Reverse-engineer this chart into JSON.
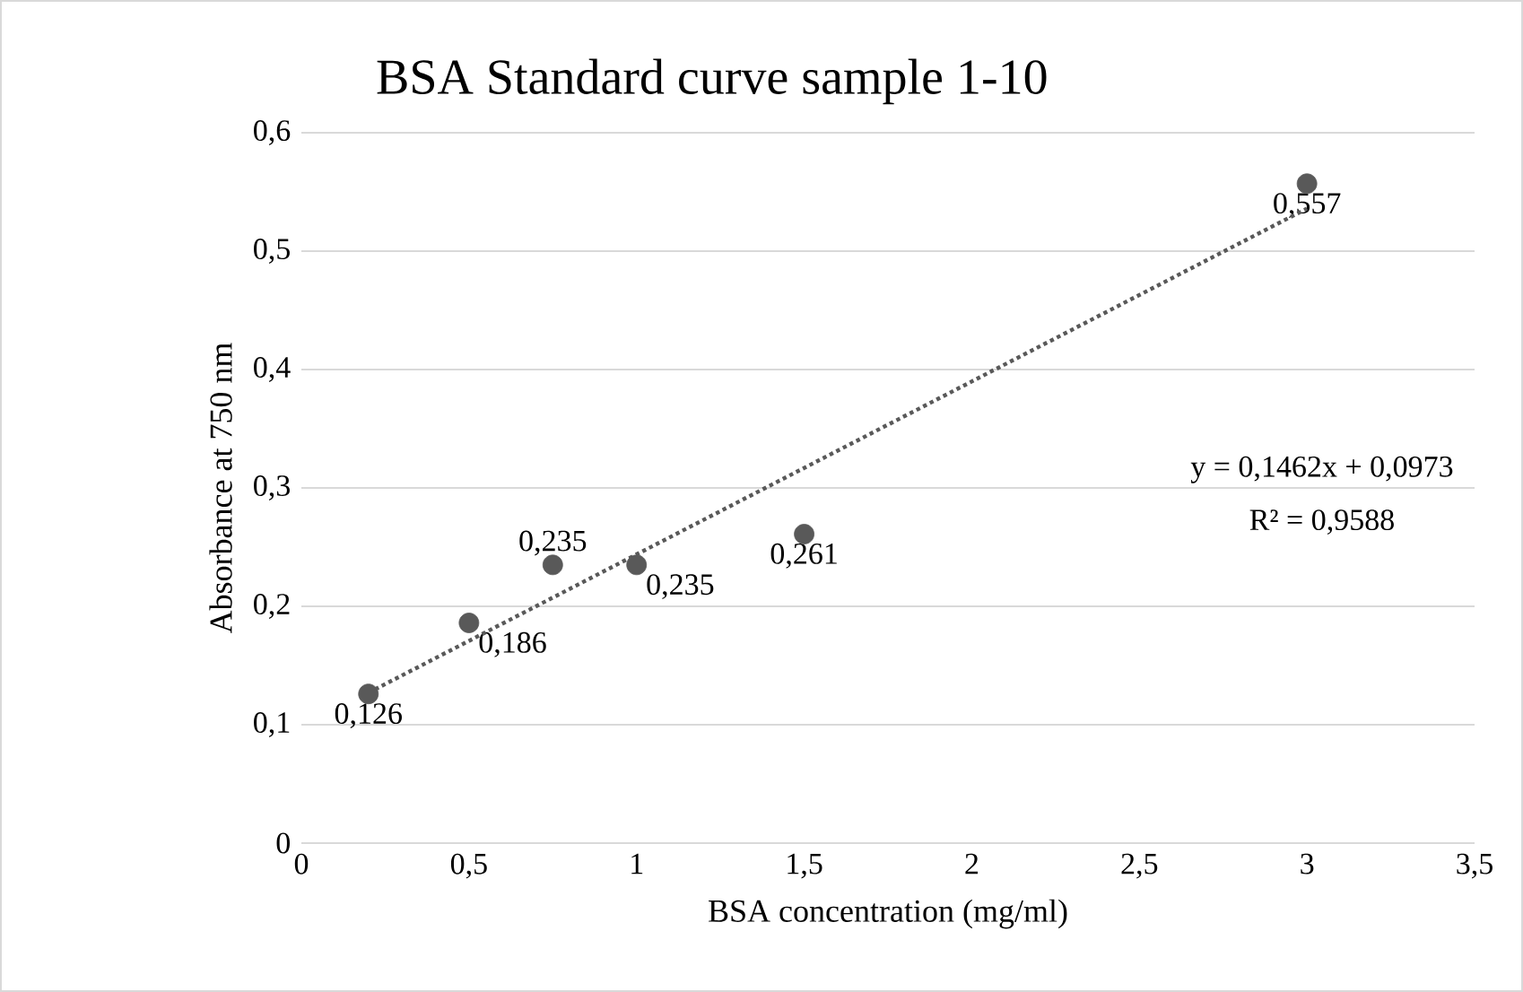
{
  "chart_data": {
    "type": "scatter",
    "title": "BSA Standard curve sample 1-10",
    "xlabel": "BSA concentration (mg/ml)",
    "ylabel": "Absorbance at 750 nm",
    "xlim": [
      0,
      3.5
    ],
    "ylim": [
      0,
      0.6
    ],
    "xticks": [
      0,
      {
        "value": 0.5,
        "label": "0,5"
      },
      1,
      {
        "value": 1.5,
        "label": "1,5"
      },
      2,
      {
        "value": 2.5,
        "label": "2,5"
      },
      3,
      {
        "value": 3.5,
        "label": "3,5"
      }
    ],
    "yticks": [
      0,
      {
        "value": 0.1,
        "label": "0,1"
      },
      {
        "value": 0.2,
        "label": "0,2"
      },
      {
        "value": 0.3,
        "label": "0,3"
      },
      {
        "value": 0.4,
        "label": "0,4"
      },
      {
        "value": 0.5,
        "label": "0,5"
      },
      {
        "value": 0.6,
        "label": "0,6"
      }
    ],
    "grid": "y",
    "series": [
      {
        "color": "#595959",
        "marker": "circle",
        "x": [
          0.2,
          0.5,
          0.75,
          1,
          1.5,
          3
        ],
        "values": [
          0.126,
          0.186,
          0.235,
          0.235,
          0.261,
          0.557
        ],
        "value_labels": [
          "0,126",
          "0,186",
          "0,235",
          "0,235",
          "0,261",
          "0,557"
        ]
      },
      {
        "type": "line",
        "color": "#595959",
        "line_style": "dotted",
        "marker": "none",
        "x": [
          0.2,
          3
        ],
        "values": [
          0.127,
          0.536
        ]
      }
    ],
    "annotations": [
      "y = 0,1462x + 0,0973",
      "R² = 0,9588"
    ]
  }
}
